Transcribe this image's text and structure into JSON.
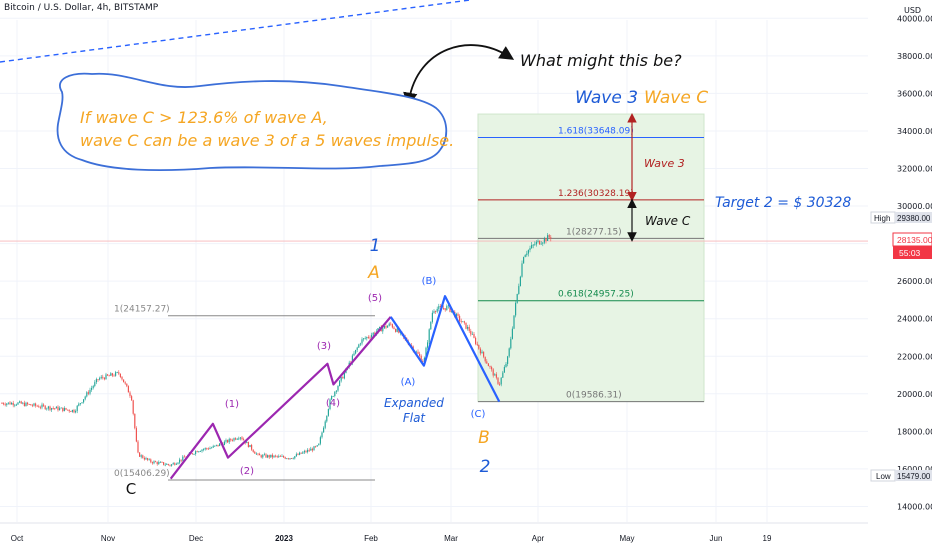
{
  "header": {
    "symbol_title": "Bitcoin / U.S. Dollar, 4h, BITSTAMP",
    "currency": "USD"
  },
  "chart_data": {
    "type": "line",
    "title": "Bitcoin / U.S. Dollar, 4h, BITSTAMP",
    "y_unit": "USD",
    "ylim": [
      13500,
      41500
    ],
    "y_ticks": [
      14000,
      16000,
      18000,
      20000,
      22000,
      24000,
      26000,
      28000,
      30000,
      32000,
      34000,
      36000,
      38000,
      40000
    ],
    "y_tick_labels": [
      "14000.00",
      "16000.00",
      "18000.00",
      "20000.00",
      "22000.00",
      "24000.00",
      "26000.00",
      "28000.00",
      "30000.00",
      "32000.00",
      "34000.00",
      "36000.00",
      "38000.00",
      "40000.00"
    ],
    "x_tick_labels": [
      "Oct",
      "Nov",
      "Dec",
      "2023",
      "Feb",
      "Mar",
      "Apr",
      "May",
      "Jun",
      "19"
    ],
    "price_markers": {
      "high": {
        "label": "High",
        "value": "29380.00"
      },
      "current": {
        "value": "28135.00",
        "countdown": "55:03"
      },
      "low": {
        "label": "Low",
        "value": "15479.00"
      }
    },
    "series": [
      {
        "name": "",
        "type": "candles",
        "x": [
          "2022-10-01",
          "2022-10-10",
          "2022-10-20",
          "2022-10-28",
          "2022-11-04",
          "2022-11-08",
          "2022-11-10",
          "2022-11-14",
          "2022-11-21",
          "2022-11-30",
          "2022-12-05",
          "2022-12-14",
          "2022-12-20",
          "2022-12-31",
          "2023-01-09",
          "2023-01-13",
          "2023-01-18",
          "2023-01-23",
          "2023-01-29",
          "2023-02-02",
          "2023-02-08",
          "2023-02-13",
          "2023-02-16",
          "2023-02-21",
          "2023-02-28",
          "2023-03-03",
          "2023-03-10",
          "2023-03-13",
          "2023-03-15",
          "2023-03-18",
          "2023-03-22",
          "2023-03-30",
          "2023-04-04"
        ],
        "y": [
          19500,
          19300,
          19100,
          20800,
          21100,
          19800,
          16800,
          16400,
          16200,
          17000,
          17150,
          17750,
          16700,
          16600,
          17200,
          19700,
          21200,
          22800,
          23400,
          23700,
          22700,
          21700,
          24500,
          24600,
          23400,
          22500,
          20500,
          22000,
          24300,
          27400,
          28000,
          28600,
          28400
        ]
      }
    ],
    "waves": {
      "abc": [
        {
          "x": "2022-11-21",
          "y": 15479,
          "label": "C"
        },
        {
          "x": "2022-12-05",
          "y": 18400
        },
        {
          "x": "2022-12-10",
          "y": 16600
        },
        {
          "x": "2023-01-12",
          "y": 21600
        },
        {
          "x": "2023-01-14",
          "y": 20500
        },
        {
          "x": "2023-02-02",
          "y": 24100
        },
        {
          "x": "2023-02-13",
          "y": 21500
        },
        {
          "x": "2023-02-20",
          "y": 25200
        },
        {
          "x": "2023-03-10",
          "y": 19586
        }
      ],
      "labels": [
        "(1)",
        "(2)",
        "(3)",
        "(4)",
        "(5)",
        "(A)",
        "(B)",
        "(C)",
        "A",
        "B",
        "C",
        "1",
        "2"
      ]
    },
    "fibonacci": [
      {
        "label": "1(24157.27)",
        "value": 24157.27
      },
      {
        "label": "0(15406.29)",
        "value": 15406.29
      },
      {
        "label": "1.618(33648.09)",
        "value": 33648.09
      },
      {
        "label": "1.236(30328.19)",
        "value": 30328.19
      },
      {
        "label": "1(28277.15)",
        "value": 28277.15
      },
      {
        "label": "0.618(24957.25)",
        "value": 24957.25
      },
      {
        "label": "0(19586.31)",
        "value": 19586.31
      }
    ]
  },
  "annotations": {
    "question": "What might this be?",
    "note_line1": "If wave C > 123.6%  of wave A,",
    "note_line2": "wave C can be a wave 3 of a 5 waves impulse.",
    "wave3_title": "Wave 3",
    "wavec_title": "Wave C",
    "wave3_inner": "Wave 3",
    "wavec_inner": "Wave C",
    "target": "Target 2 = $ 30328",
    "expanded": "Expanded",
    "flat": "Flat",
    "label_1": "1",
    "label_A": "A",
    "label_B": "B",
    "label_2": "2",
    "label_C": "C"
  },
  "colors": {
    "up": "#26a69a",
    "down": "#ef5350",
    "impulse": "#9c27b0",
    "correction": "#2962ff",
    "orange": "#f5a623",
    "blue_text": "#1e5bd6",
    "fib_zone": "#e7f4e4",
    "fib_red": "#b22222",
    "fib_green": "#138a4d",
    "current_price": "#f23645"
  }
}
